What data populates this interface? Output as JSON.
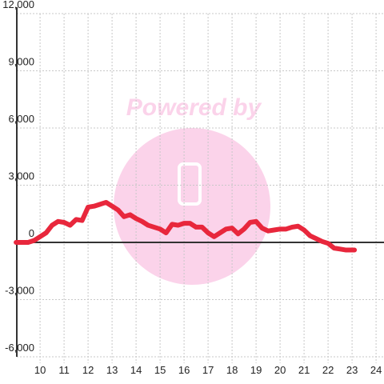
{
  "chart_data": {
    "type": "line",
    "watermark": "Powered by",
    "x": [
      9.0,
      9.5,
      9.75,
      10.0,
      10.25,
      10.5,
      10.75,
      11.0,
      11.25,
      11.5,
      11.75,
      12.0,
      12.25,
      12.5,
      12.75,
      13.0,
      13.25,
      13.5,
      13.75,
      14.0,
      14.25,
      14.5,
      14.75,
      15.0,
      15.25,
      15.5,
      15.75,
      16.0,
      16.25,
      16.5,
      16.75,
      17.0,
      17.25,
      17.5,
      17.75,
      18.0,
      18.25,
      18.5,
      18.75,
      19.0,
      19.25,
      19.5,
      19.75,
      20.0,
      20.25,
      20.5,
      20.75,
      21.0,
      21.25,
      21.5,
      21.75,
      22.0,
      22.25,
      22.5,
      22.75,
      23.0,
      23.1
    ],
    "series": [
      {
        "color": "#e8273c",
        "values": [
          0,
          0,
          100,
          300,
          500,
          900,
          1100,
          1050,
          900,
          1200,
          1150,
          1850,
          1900,
          2000,
          2100,
          1900,
          1700,
          1350,
          1450,
          1250,
          1100,
          900,
          800,
          700,
          500,
          950,
          900,
          1000,
          1000,
          800,
          800,
          500,
          300,
          500,
          700,
          750,
          450,
          700,
          1050,
          1100,
          750,
          600,
          650,
          700,
          700,
          800,
          850,
          650,
          350,
          200,
          50,
          -50,
          -300,
          -350,
          -400,
          -400,
          -400
        ]
      }
    ],
    "xlim": [
      9.03,
      24.33
    ],
    "xticks": [
      10,
      11,
      12,
      13,
      14,
      15,
      16,
      17,
      18,
      19,
      20,
      21,
      22,
      23,
      24
    ],
    "ylim": [
      -6000,
      12000
    ],
    "yticks": [
      {
        "value": -6000,
        "label": "-6,000"
      },
      {
        "value": -3000,
        "label": "-3,000"
      },
      0,
      {
        "value": 3000,
        "label": "3,000"
      },
      {
        "value": 6000,
        "label": "6,000"
      },
      {
        "value": 9000,
        "label": "9,000"
      },
      {
        "value": 12000,
        "label": "12,000"
      }
    ],
    "grid": true
  }
}
